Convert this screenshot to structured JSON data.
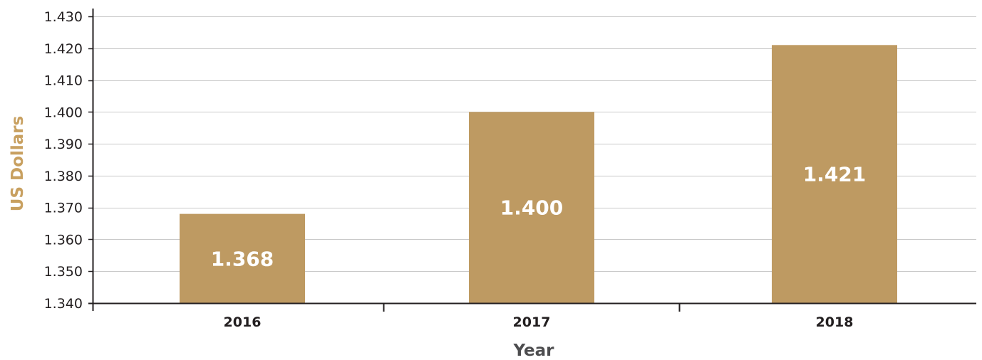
{
  "chart_data": {
    "type": "bar",
    "categories": [
      "2016",
      "2017",
      "2018"
    ],
    "values": [
      1.368,
      1.4,
      1.421
    ],
    "data_labels": [
      "1.368",
      "1.400",
      "1.421"
    ],
    "title": "",
    "xlabel": "Year",
    "ylabel": "US Dollars",
    "ylim": [
      1.34,
      1.43
    ],
    "yticks": [
      1.34,
      1.35,
      1.36,
      1.37,
      1.38,
      1.39,
      1.4,
      1.41,
      1.42,
      1.43
    ],
    "ytick_labels": [
      "1.340",
      "1.350",
      "1.360",
      "1.370",
      "1.380",
      "1.390",
      "1.400",
      "1.410",
      "1.420",
      "1.430"
    ],
    "grid": "horizontal",
    "legend": "none",
    "colors": {
      "bar": "#be9a62",
      "ylabel": "#c8a060",
      "grid": "#c8c8c8",
      "axis": "#231f20"
    }
  }
}
